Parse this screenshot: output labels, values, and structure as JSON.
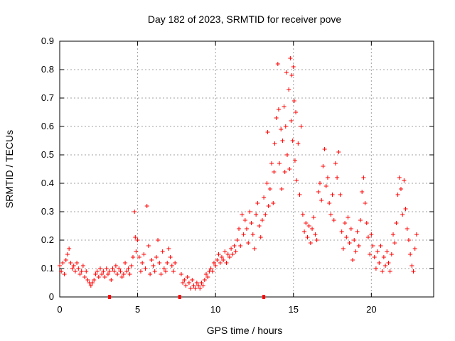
{
  "chart_data": {
    "type": "scatter",
    "title": "Day 182 of 2023, SRMTID for receiver pove",
    "xlabel": "GPS time / hours",
    "ylabel": "SRMTID / TECUs",
    "xlim": [
      0,
      24
    ],
    "ylim": [
      0,
      0.9
    ],
    "xticks": [
      0,
      5,
      10,
      15,
      20
    ],
    "xtick_labels": [
      "0",
      "5",
      "10",
      "15",
      "20"
    ],
    "yticks": [
      0,
      0.1,
      0.2,
      0.3,
      0.4,
      0.5,
      0.6,
      0.7,
      0.8,
      0.9
    ],
    "ytick_labels": [
      "0",
      "0.1",
      "0.2",
      "0.3",
      "0.4",
      "0.5",
      "0.6",
      "0.7",
      "0.8",
      "0.9"
    ],
    "grid": true,
    "marker": "+",
    "color": "#ff0000",
    "bottom_markers_x": [
      3.2,
      7.7,
      13.1
    ],
    "series": [
      {
        "name": "SRMTID",
        "points": [
          [
            0.0,
            0.11
          ],
          [
            0.1,
            0.09
          ],
          [
            0.2,
            0.12
          ],
          [
            0.3,
            0.08
          ],
          [
            0.4,
            0.13
          ],
          [
            0.5,
            0.15
          ],
          [
            0.6,
            0.17
          ],
          [
            0.7,
            0.12
          ],
          [
            0.8,
            0.1
          ],
          [
            0.9,
            0.11
          ],
          [
            1.0,
            0.09
          ],
          [
            1.1,
            0.12
          ],
          [
            1.2,
            0.1
          ],
          [
            1.3,
            0.08
          ],
          [
            1.4,
            0.09
          ],
          [
            1.5,
            0.11
          ],
          [
            1.6,
            0.07
          ],
          [
            1.7,
            0.09
          ],
          [
            1.8,
            0.06
          ],
          [
            1.9,
            0.05
          ],
          [
            2.0,
            0.04
          ],
          [
            2.1,
            0.05
          ],
          [
            2.2,
            0.06
          ],
          [
            2.3,
            0.08
          ],
          [
            2.4,
            0.09
          ],
          [
            2.5,
            0.07
          ],
          [
            2.6,
            0.1
          ],
          [
            2.7,
            0.08
          ],
          [
            2.8,
            0.09
          ],
          [
            2.9,
            0.07
          ],
          [
            3.0,
            0.1
          ],
          [
            3.1,
            0.08
          ],
          [
            3.2,
            0.09
          ],
          [
            3.3,
            0.06
          ],
          [
            3.4,
            0.1
          ],
          [
            3.5,
            0.09
          ],
          [
            3.6,
            0.11
          ],
          [
            3.7,
            0.08
          ],
          [
            3.8,
            0.1
          ],
          [
            3.9,
            0.09
          ],
          [
            4.0,
            0.07
          ],
          [
            4.1,
            0.08
          ],
          [
            4.2,
            0.12
          ],
          [
            4.3,
            0.09
          ],
          [
            4.4,
            0.1
          ],
          [
            4.5,
            0.08
          ],
          [
            4.6,
            0.11
          ],
          [
            4.7,
            0.14
          ],
          [
            4.8,
            0.3
          ],
          [
            4.85,
            0.21
          ],
          [
            4.9,
            0.16
          ],
          [
            5.0,
            0.2
          ],
          [
            5.1,
            0.14
          ],
          [
            5.2,
            0.09
          ],
          [
            5.3,
            0.12
          ],
          [
            5.4,
            0.15
          ],
          [
            5.5,
            0.1
          ],
          [
            5.6,
            0.32
          ],
          [
            5.7,
            0.18
          ],
          [
            5.8,
            0.08
          ],
          [
            5.9,
            0.13
          ],
          [
            6.0,
            0.11
          ],
          [
            6.1,
            0.09
          ],
          [
            6.2,
            0.14
          ],
          [
            6.3,
            0.2
          ],
          [
            6.4,
            0.12
          ],
          [
            6.5,
            0.08
          ],
          [
            6.6,
            0.16
          ],
          [
            6.7,
            0.1
          ],
          [
            6.8,
            0.09
          ],
          [
            6.9,
            0.12
          ],
          [
            7.0,
            0.17
          ],
          [
            7.1,
            0.14
          ],
          [
            7.2,
            0.11
          ],
          [
            7.3,
            0.09
          ],
          [
            7.4,
            0.12
          ],
          [
            7.8,
            0.08
          ],
          [
            7.9,
            0.05
          ],
          [
            8.0,
            0.06
          ],
          [
            8.1,
            0.04
          ],
          [
            8.2,
            0.07
          ],
          [
            8.3,
            0.05
          ],
          [
            8.4,
            0.03
          ],
          [
            8.5,
            0.06
          ],
          [
            8.6,
            0.04
          ],
          [
            8.7,
            0.03
          ],
          [
            8.8,
            0.05
          ],
          [
            8.9,
            0.04
          ],
          [
            9.0,
            0.03
          ],
          [
            9.1,
            0.05
          ],
          [
            9.2,
            0.04
          ],
          [
            9.3,
            0.06
          ],
          [
            9.4,
            0.08
          ],
          [
            9.5,
            0.07
          ],
          [
            9.6,
            0.09
          ],
          [
            9.7,
            0.1
          ],
          [
            9.8,
            0.09
          ],
          [
            9.9,
            0.12
          ],
          [
            10.0,
            0.11
          ],
          [
            10.1,
            0.13
          ],
          [
            10.2,
            0.15
          ],
          [
            10.3,
            0.12
          ],
          [
            10.4,
            0.14
          ],
          [
            10.5,
            0.13
          ],
          [
            10.6,
            0.16
          ],
          [
            10.7,
            0.12
          ],
          [
            10.8,
            0.15
          ],
          [
            10.9,
            0.14
          ],
          [
            11.0,
            0.17
          ],
          [
            11.1,
            0.15
          ],
          [
            11.2,
            0.18
          ],
          [
            11.3,
            0.16
          ],
          [
            11.4,
            0.2
          ],
          [
            11.5,
            0.24
          ],
          [
            11.6,
            0.18
          ],
          [
            11.7,
            0.29
          ],
          [
            11.8,
            0.22
          ],
          [
            11.9,
            0.27
          ],
          [
            12.0,
            0.24
          ],
          [
            12.1,
            0.19
          ],
          [
            12.2,
            0.3
          ],
          [
            12.3,
            0.26
          ],
          [
            12.4,
            0.22
          ],
          [
            12.5,
            0.17
          ],
          [
            12.6,
            0.29
          ],
          [
            12.7,
            0.33
          ],
          [
            12.8,
            0.25
          ],
          [
            12.9,
            0.21
          ],
          [
            13.0,
            0.27
          ],
          [
            13.1,
            0.35
          ],
          [
            13.2,
            0.29
          ],
          [
            13.3,
            0.4
          ],
          [
            13.35,
            0.58
          ],
          [
            13.4,
            0.32
          ],
          [
            13.5,
            0.38
          ],
          [
            13.6,
            0.47
          ],
          [
            13.7,
            0.33
          ],
          [
            13.75,
            0.44
          ],
          [
            13.8,
            0.54
          ],
          [
            13.9,
            0.63
          ],
          [
            14.0,
            0.82
          ],
          [
            14.05,
            0.66
          ],
          [
            14.1,
            0.47
          ],
          [
            14.2,
            0.59
          ],
          [
            14.25,
            0.38
          ],
          [
            14.3,
            0.55
          ],
          [
            14.4,
            0.67
          ],
          [
            14.45,
            0.44
          ],
          [
            14.5,
            0.6
          ],
          [
            14.55,
            0.79
          ],
          [
            14.6,
            0.5
          ],
          [
            14.7,
            0.73
          ],
          [
            14.75,
            0.45
          ],
          [
            14.8,
            0.84
          ],
          [
            14.85,
            0.62
          ],
          [
            14.9,
            0.78
          ],
          [
            14.95,
            0.55
          ],
          [
            15.0,
            0.81
          ],
          [
            15.05,
            0.69
          ],
          [
            15.1,
            0.48
          ],
          [
            15.15,
            0.65
          ],
          [
            15.2,
            0.41
          ],
          [
            15.3,
            0.54
          ],
          [
            15.4,
            0.36
          ],
          [
            15.5,
            0.6
          ],
          [
            15.6,
            0.29
          ],
          [
            15.7,
            0.23
          ],
          [
            15.8,
            0.26
          ],
          [
            15.9,
            0.21
          ],
          [
            16.0,
            0.25
          ],
          [
            16.1,
            0.19
          ],
          [
            16.2,
            0.24
          ],
          [
            16.3,
            0.28
          ],
          [
            16.4,
            0.22
          ],
          [
            16.5,
            0.2
          ],
          [
            16.6,
            0.37
          ],
          [
            16.7,
            0.4
          ],
          [
            16.8,
            0.34
          ],
          [
            16.9,
            0.46
          ],
          [
            17.0,
            0.52
          ],
          [
            17.1,
            0.39
          ],
          [
            17.2,
            0.42
          ],
          [
            17.3,
            0.33
          ],
          [
            17.4,
            0.29
          ],
          [
            17.5,
            0.36
          ],
          [
            17.6,
            0.27
          ],
          [
            17.7,
            0.47
          ],
          [
            17.8,
            0.42
          ],
          [
            17.9,
            0.51
          ],
          [
            18.0,
            0.36
          ],
          [
            18.1,
            0.23
          ],
          [
            18.2,
            0.17
          ],
          [
            18.3,
            0.26
          ],
          [
            18.4,
            0.21
          ],
          [
            18.5,
            0.28
          ],
          [
            18.6,
            0.19
          ],
          [
            18.7,
            0.24
          ],
          [
            18.8,
            0.13
          ],
          [
            18.9,
            0.2
          ],
          [
            19.0,
            0.16
          ],
          [
            19.1,
            0.23
          ],
          [
            19.2,
            0.18
          ],
          [
            19.3,
            0.27
          ],
          [
            19.4,
            0.37
          ],
          [
            19.5,
            0.42
          ],
          [
            19.6,
            0.33
          ],
          [
            19.7,
            0.26
          ],
          [
            19.8,
            0.21
          ],
          [
            19.9,
            0.15
          ],
          [
            20.0,
            0.22
          ],
          [
            20.1,
            0.18
          ],
          [
            20.2,
            0.14
          ],
          [
            20.3,
            0.1
          ],
          [
            20.4,
            0.16
          ],
          [
            20.5,
            0.12
          ],
          [
            20.6,
            0.18
          ],
          [
            20.7,
            0.09
          ],
          [
            20.8,
            0.14
          ],
          [
            20.9,
            0.11
          ],
          [
            21.0,
            0.16
          ],
          [
            21.1,
            0.12
          ],
          [
            21.2,
            0.09
          ],
          [
            21.3,
            0.15
          ],
          [
            21.4,
            0.22
          ],
          [
            21.5,
            0.19
          ],
          [
            21.6,
            0.26
          ],
          [
            21.7,
            0.36
          ],
          [
            21.8,
            0.42
          ],
          [
            21.9,
            0.38
          ],
          [
            22.0,
            0.29
          ],
          [
            22.1,
            0.41
          ],
          [
            22.2,
            0.31
          ],
          [
            22.3,
            0.24
          ],
          [
            22.4,
            0.2
          ],
          [
            22.5,
            0.15
          ],
          [
            22.6,
            0.11
          ],
          [
            22.7,
            0.09
          ],
          [
            22.8,
            0.17
          ],
          [
            22.9,
            0.22
          ]
        ]
      }
    ]
  }
}
